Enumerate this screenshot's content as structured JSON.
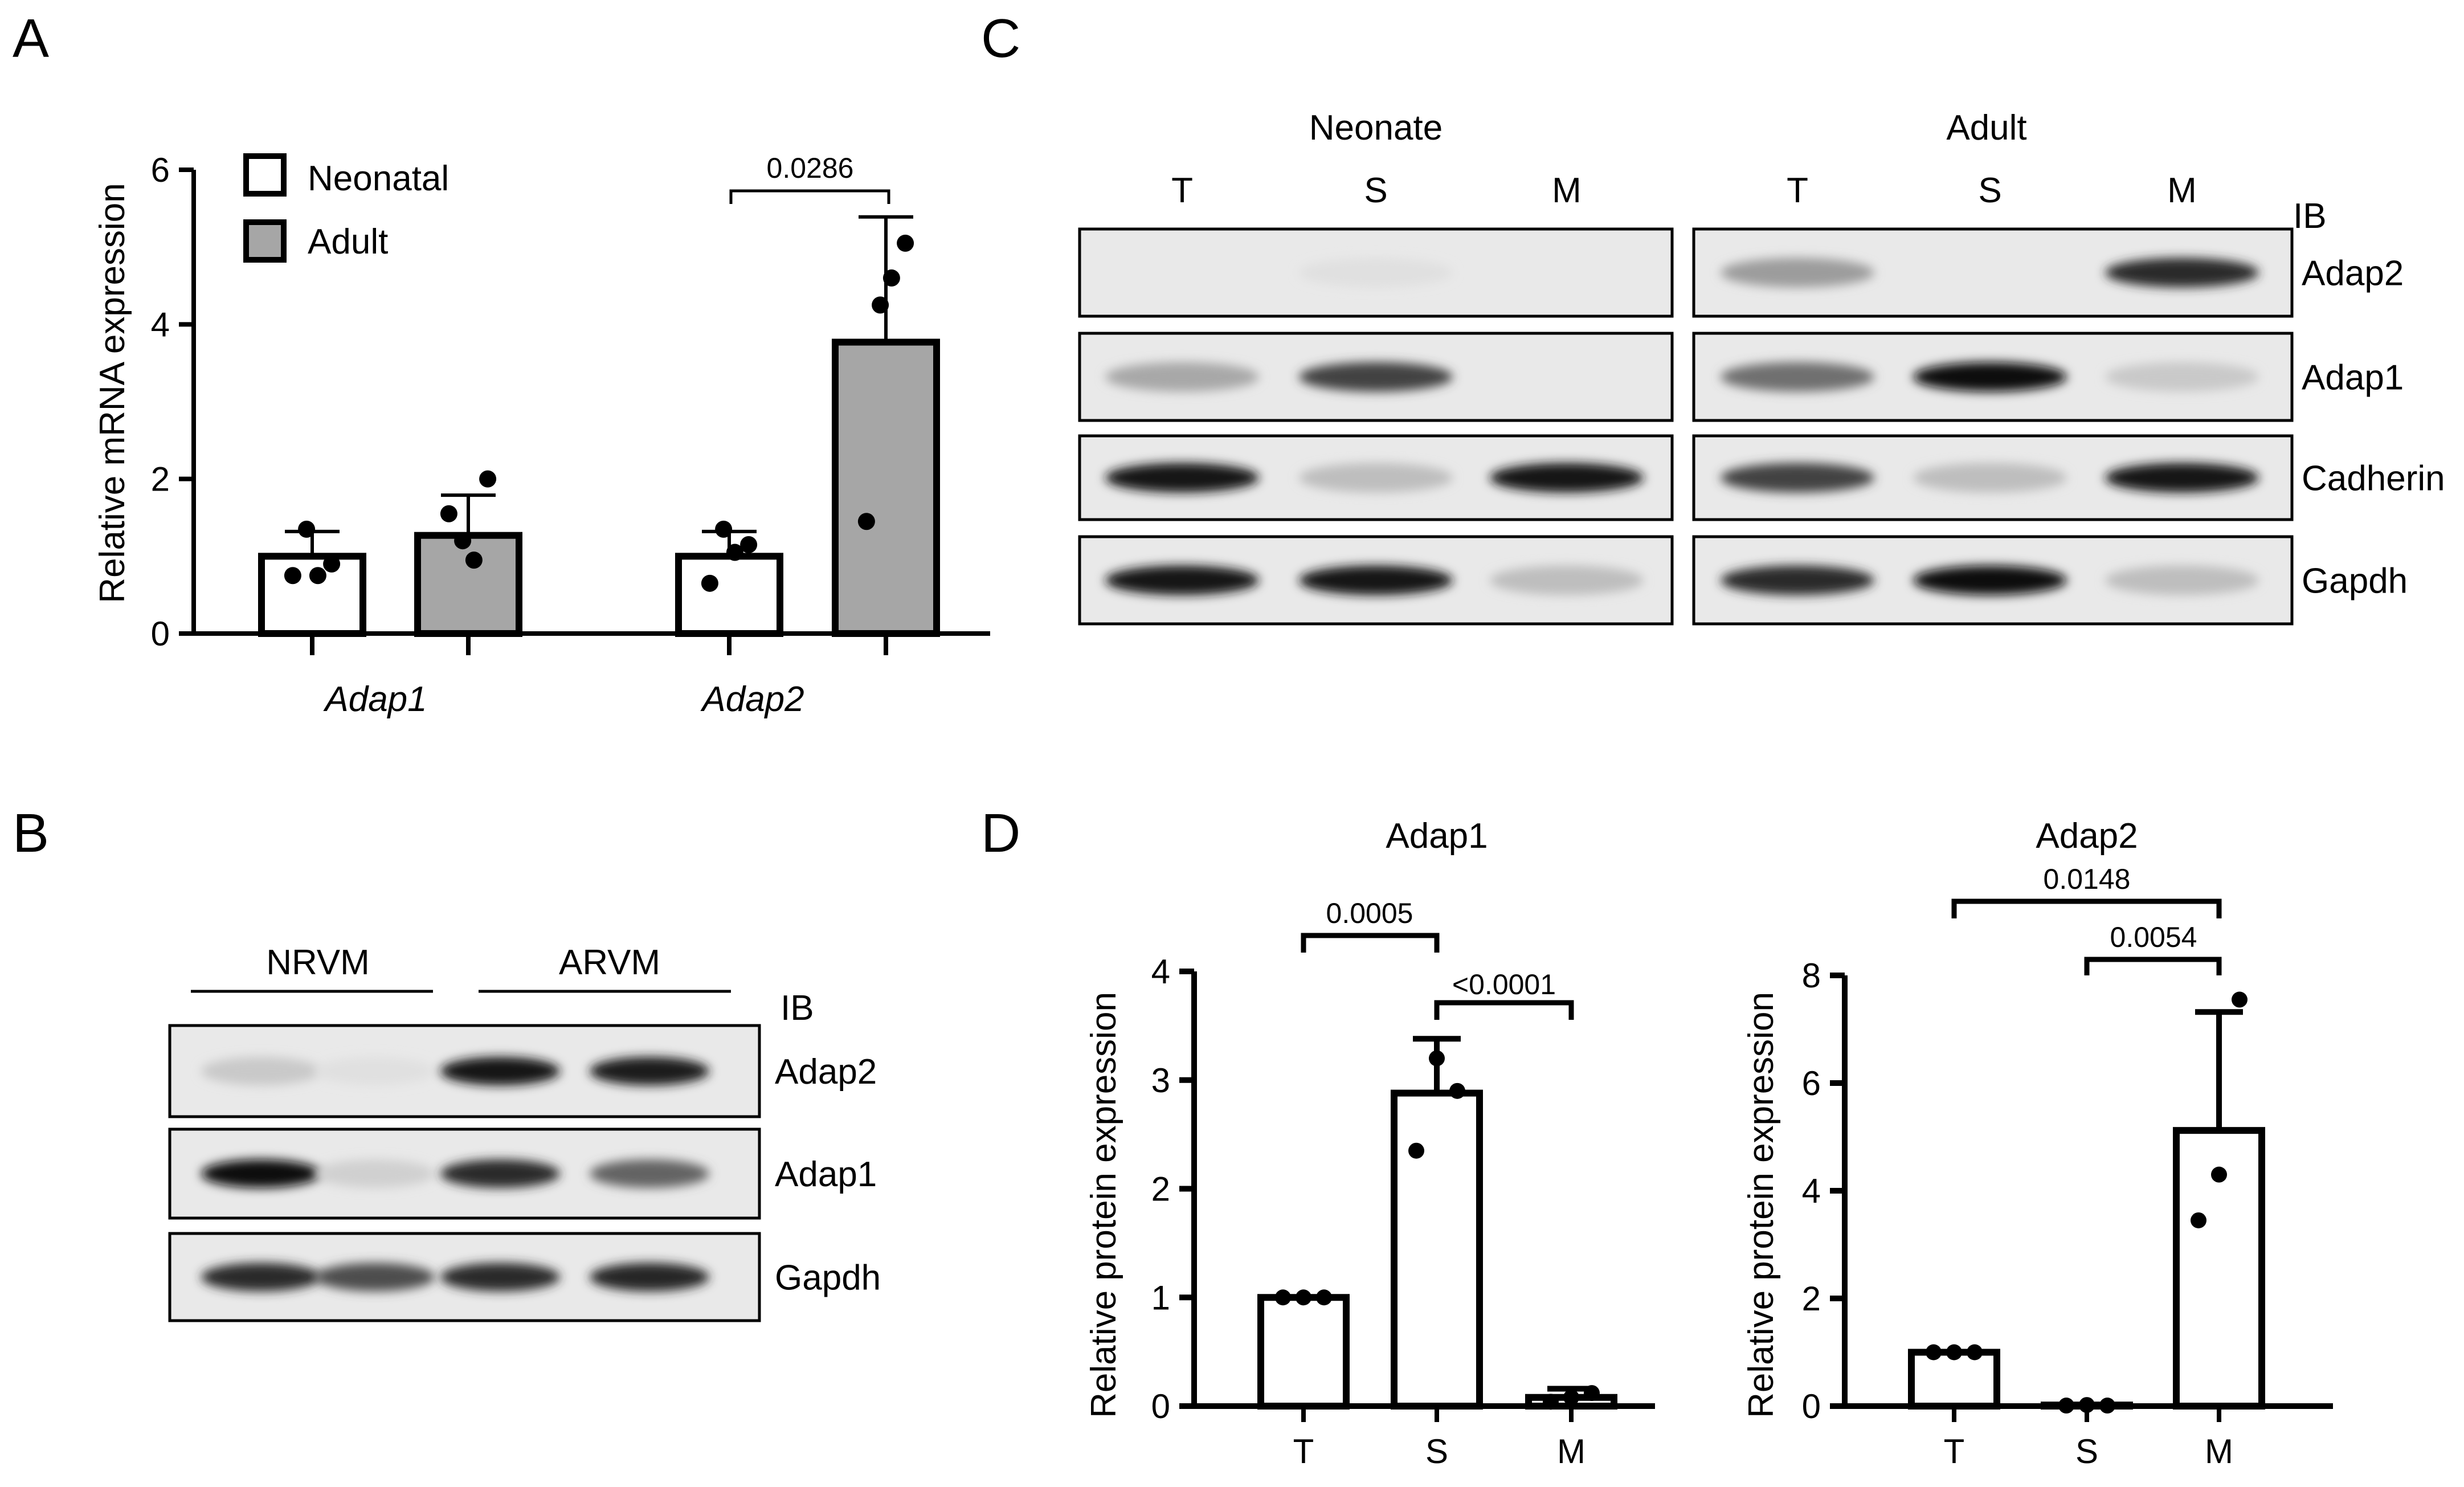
{
  "panels": {
    "A": "A",
    "B": "B",
    "C": "C",
    "D": "D"
  },
  "colors": {
    "neonatal": "#ffffff",
    "adult": "#a6a6a6",
    "axis": "#000000",
    "blot_bg": "#e9e9e9"
  },
  "chart_data": [
    {
      "panel": "A",
      "type": "bar",
      "ylabel": "Relative mRNA expression",
      "ylim": [
        0,
        6
      ],
      "yticks": [
        "0",
        "2",
        "4",
        "6"
      ],
      "categories": [
        "Adap1",
        "Adap2"
      ],
      "legend": {
        "placement": "top-left",
        "entries": [
          "Neonatal",
          "Adult"
        ]
      },
      "series": [
        {
          "name": "Neonatal",
          "values": [
            1.0,
            1.0
          ],
          "errors": [
            0.32,
            0.32
          ],
          "points": [
            [
              0.75,
              1.35,
              0.75,
              0.9
            ],
            [
              0.65,
              1.35,
              1.05,
              1.15
            ]
          ]
        },
        {
          "name": "Adult",
          "values": [
            1.27,
            3.77
          ],
          "errors": [
            0.52,
            1.62
          ],
          "points": [
            [
              1.55,
              1.2,
              0.95,
              2.0
            ],
            [
              1.45,
              4.25,
              4.6,
              5.05
            ]
          ]
        }
      ],
      "annotations": [
        {
          "text": "0.0286",
          "compare": "Adap2"
        }
      ]
    },
    {
      "panel": "D-left",
      "type": "bar",
      "title": "Adap1",
      "ylabel": "Relative protein expression",
      "ylim": [
        0,
        4
      ],
      "yticks": [
        "0",
        "1",
        "2",
        "3",
        "4"
      ],
      "categories": [
        "T",
        "S",
        "M"
      ],
      "values": [
        1.0,
        2.88,
        0.08
      ],
      "errors": [
        0.0,
        0.5,
        0.08
      ],
      "points": [
        [
          1.0,
          1.0,
          1.0
        ],
        [
          2.35,
          3.2,
          2.9
        ],
        [
          0.04,
          0.08,
          0.12
        ]
      ],
      "annotations": [
        {
          "text": "0.0005",
          "from": "T",
          "to": "S"
        },
        {
          "text": "<0.0001",
          "from": "S",
          "to": "M"
        }
      ]
    },
    {
      "panel": "D-right",
      "type": "bar",
      "title": "Adap2",
      "ylabel": "Relative protein expression",
      "ylim": [
        0,
        8
      ],
      "yticks": [
        "0",
        "2",
        "4",
        "6",
        "8"
      ],
      "categories": [
        "T",
        "S",
        "M"
      ],
      "values": [
        1.0,
        0.02,
        5.12
      ],
      "errors": [
        0.0,
        0.0,
        2.2
      ],
      "points": [
        [
          1.0,
          1.0,
          1.0
        ],
        [
          0.01,
          0.02,
          0.01
        ],
        [
          3.45,
          4.3,
          7.55
        ]
      ],
      "annotations": [
        {
          "text": "0.0148",
          "from": "T",
          "to": "M"
        },
        {
          "text": "0.0054",
          "from": "S",
          "to": "M"
        }
      ]
    }
  ],
  "blot_B": {
    "groups": [
      "NRVM",
      "ARVM"
    ],
    "ib_label": "IB",
    "rows": [
      {
        "label": "Adap2",
        "bands": [
          0.15,
          0.05,
          0.95,
          0.92
        ]
      },
      {
        "label": "Adap1",
        "bands": [
          1.0,
          0.12,
          0.85,
          0.6
        ]
      },
      {
        "label": "Gapdh",
        "bands": [
          0.85,
          0.7,
          0.85,
          0.88
        ]
      }
    ]
  },
  "blot_C": {
    "groups": [
      "Neonate",
      "Adult"
    ],
    "lanes": [
      "T",
      "S",
      "M"
    ],
    "ib_label": "IB",
    "rows": [
      {
        "label": "Adap2",
        "neonate": [
          0.0,
          0.05,
          0.0
        ],
        "adult": [
          0.35,
          0.0,
          0.85
        ]
      },
      {
        "label": "Adap1",
        "neonate": [
          0.3,
          0.75,
          0.0
        ],
        "adult": [
          0.55,
          1.0,
          0.15
        ]
      },
      {
        "label": "Cadherin",
        "neonate": [
          0.95,
          0.2,
          0.95
        ],
        "adult": [
          0.75,
          0.2,
          0.95
        ]
      },
      {
        "label": "Gapdh",
        "neonate": [
          0.95,
          0.95,
          0.2
        ],
        "adult": [
          0.85,
          1.0,
          0.2
        ]
      }
    ]
  }
}
